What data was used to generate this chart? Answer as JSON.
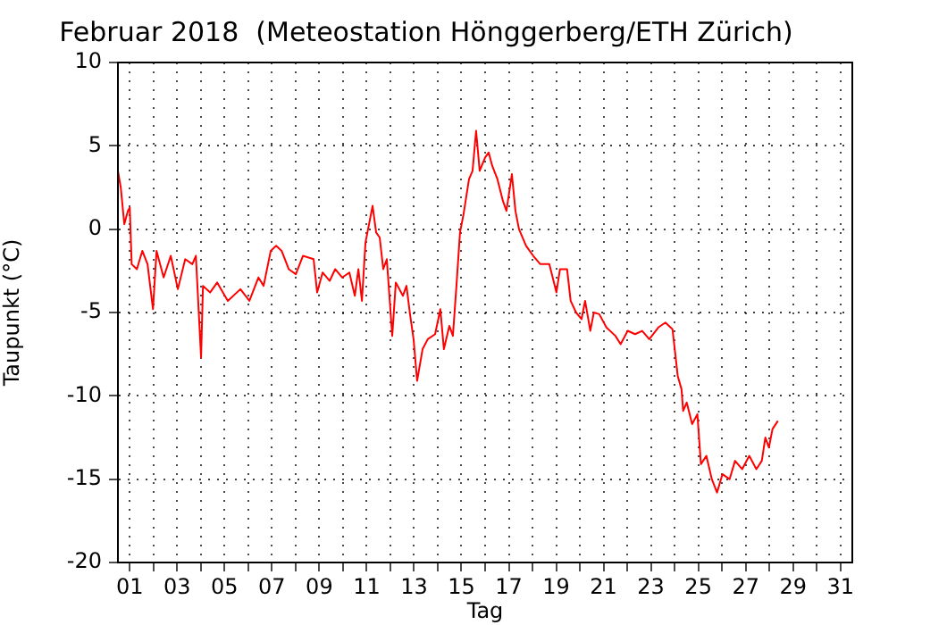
{
  "chart_data": {
    "type": "line",
    "title": "Februar 2018  (Meteostation Hönggerberg/ETH Zürich)",
    "xlabel": "Tag",
    "ylabel": "Taupunkt (°C)",
    "x": [
      0.5,
      0.62,
      0.77,
      0.92,
      1.0,
      1.08,
      1.3,
      1.53,
      1.75,
      1.98,
      2.13,
      2.43,
      2.73,
      3.03,
      3.34,
      3.64,
      3.79,
      4.01,
      4.09,
      4.39,
      4.69,
      5.14,
      5.67,
      6.05,
      6.43,
      6.65,
      6.95,
      7.18,
      7.41,
      7.71,
      8.01,
      8.31,
      8.76,
      8.91,
      9.14,
      9.44,
      9.67,
      9.97,
      10.27,
      10.5,
      10.65,
      10.8,
      10.95,
      11.1,
      11.25,
      11.4,
      11.55,
      11.7,
      11.85,
      12.08,
      12.23,
      12.53,
      12.68,
      12.83,
      12.98,
      13.13,
      13.36,
      13.58,
      13.89,
      14.11,
      14.26,
      14.49,
      14.64,
      14.79,
      14.94,
      15.09,
      15.32,
      15.47,
      15.62,
      15.77,
      16.0,
      16.15,
      16.3,
      16.52,
      16.75,
      16.9,
      17.13,
      17.28,
      17.43,
      17.73,
      18.03,
      18.33,
      18.71,
      19.01,
      19.16,
      19.46,
      19.61,
      19.84,
      20.07,
      20.22,
      20.44,
      20.59,
      20.82,
      21.12,
      21.5,
      21.72,
      22.02,
      22.33,
      22.63,
      22.93,
      23.31,
      23.61,
      23.91,
      24.13,
      24.29,
      24.36,
      24.51,
      24.74,
      24.96,
      25.11,
      25.34,
      25.57,
      25.79,
      26.02,
      26.32,
      26.55,
      26.85,
      27.15,
      27.45,
      27.68,
      27.83,
      27.98,
      28.13,
      28.36
    ],
    "series": [
      {
        "color": "#ff0000",
        "values": [
          3.5,
          2.5,
          0.3,
          1.1,
          1.3,
          -2.1,
          -2.4,
          -1.3,
          -2.1,
          -4.8,
          -1.3,
          -2.9,
          -1.6,
          -3.6,
          -1.8,
          -2.1,
          -1.6,
          -7.7,
          -3.4,
          -3.8,
          -3.2,
          -4.3,
          -3.6,
          -4.3,
          -2.9,
          -3.4,
          -1.3,
          -1.0,
          -1.3,
          -2.4,
          -2.7,
          -1.6,
          -1.8,
          -3.8,
          -2.6,
          -3.1,
          -2.4,
          -2.9,
          -2.6,
          -4.0,
          -2.4,
          -4.3,
          -0.8,
          0.3,
          1.4,
          -0.2,
          -0.5,
          -2.4,
          -1.8,
          -6.4,
          -3.2,
          -4.0,
          -3.4,
          -5.1,
          -6.6,
          -9.1,
          -7.2,
          -6.6,
          -6.3,
          -4.8,
          -7.2,
          -5.8,
          -6.4,
          -3.4,
          -0.2,
          0.9,
          3.0,
          3.5,
          5.9,
          3.5,
          4.3,
          4.6,
          3.8,
          3.0,
          1.7,
          1.1,
          3.3,
          1.1,
          0.0,
          -1.0,
          -1.6,
          -2.1,
          -2.1,
          -3.8,
          -2.4,
          -2.4,
          -4.3,
          -5.0,
          -5.4,
          -4.3,
          -6.1,
          -5.0,
          -5.1,
          -5.9,
          -6.4,
          -6.9,
          -6.1,
          -6.3,
          -6.1,
          -6.6,
          -5.9,
          -5.6,
          -6.0,
          -8.8,
          -9.6,
          -10.9,
          -10.4,
          -11.7,
          -11.1,
          -14.1,
          -13.6,
          -15.0,
          -15.8,
          -14.7,
          -15.0,
          -13.9,
          -14.4,
          -13.6,
          -14.4,
          -13.9,
          -12.5,
          -13.1,
          -12.0,
          -11.5
        ]
      }
    ],
    "xlim": [
      0.5,
      31.5
    ],
    "xticks": [
      {
        "value": 1,
        "label": "01"
      },
      {
        "value": 2,
        "label": null
      },
      {
        "value": 3,
        "label": "03"
      },
      {
        "value": 4,
        "label": null
      },
      {
        "value": 5,
        "label": "05"
      },
      {
        "value": 6,
        "label": null
      },
      {
        "value": 7,
        "label": "07"
      },
      {
        "value": 8,
        "label": null
      },
      {
        "value": 9,
        "label": "09"
      },
      {
        "value": 10,
        "label": null
      },
      {
        "value": 11,
        "label": "11"
      },
      {
        "value": 12,
        "label": null
      },
      {
        "value": 13,
        "label": "13"
      },
      {
        "value": 14,
        "label": null
      },
      {
        "value": 15,
        "label": "15"
      },
      {
        "value": 16,
        "label": null
      },
      {
        "value": 17,
        "label": "17"
      },
      {
        "value": 18,
        "label": null
      },
      {
        "value": 19,
        "label": "19"
      },
      {
        "value": 20,
        "label": null
      },
      {
        "value": 21,
        "label": "21"
      },
      {
        "value": 22,
        "label": null
      },
      {
        "value": 23,
        "label": "23"
      },
      {
        "value": 24,
        "label": null
      },
      {
        "value": 25,
        "label": "25"
      },
      {
        "value": 26,
        "label": null
      },
      {
        "value": 27,
        "label": "27"
      },
      {
        "value": 28,
        "label": null
      },
      {
        "value": 29,
        "label": "29"
      },
      {
        "value": 30,
        "label": null
      },
      {
        "value": 31,
        "label": "31"
      }
    ],
    "ylim": [
      -20,
      10
    ],
    "yticks": [
      -20,
      -15,
      -10,
      -5,
      0,
      5,
      10
    ],
    "grid": true,
    "legend": false,
    "marker": "none",
    "line_style": "solid"
  }
}
